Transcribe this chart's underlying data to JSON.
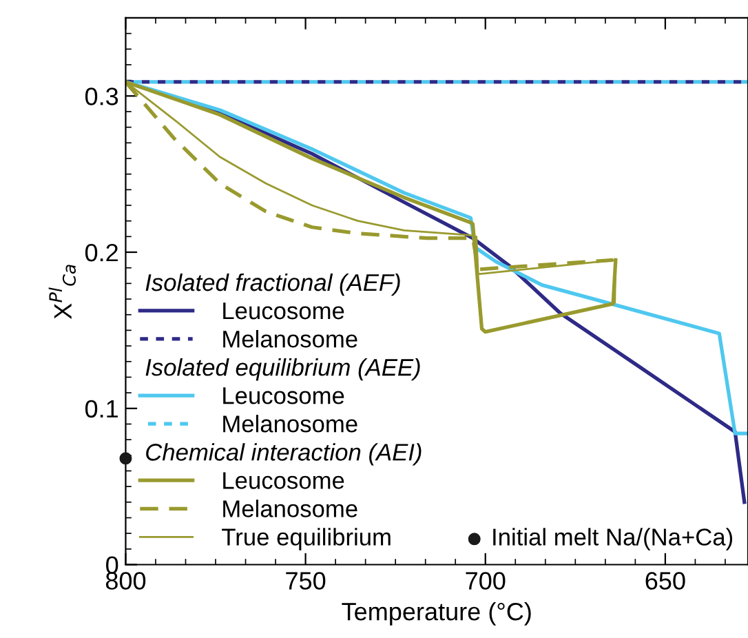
{
  "chart_data": {
    "type": "line",
    "xlabel": "Temperature (°C)",
    "ylabel": "X$^{Pl}$$_{Ca}$",
    "xlim": [
      800,
      627
    ],
    "xticks": [
      800,
      750,
      700,
      650
    ],
    "ylim": [
      0,
      0.35
    ],
    "yticks": [
      0,
      0.1,
      0.2,
      0.3
    ],
    "grid": false,
    "legend": "bottom left",
    "marker": "none",
    "annotations": [
      "Isolated fractional (AEF)",
      "Isolated equilibrium (AEE)",
      "Chemical interaction (AEI)"
    ],
    "series": [
      {
        "name": "Leucosome",
        "color": "#2e2a86",
        "line_style": "solid",
        "x": [
          800,
          773.8,
          748.2,
          722.6,
          703.5,
          693.2,
          679.2,
          658.7,
          630.6,
          628
        ],
        "values": [
          0.309,
          0.289,
          0.263,
          0.232,
          0.209,
          0.191,
          0.161,
          0.129,
          0.085,
          0.04
        ]
      },
      {
        "name": "Melanosome",
        "color": "#2e2a86",
        "line_style": "dotted",
        "x": [
          800,
          627
        ],
        "values": [
          0.309,
          0.309
        ]
      },
      {
        "name": "Leucosome",
        "color": "#4fc8ef",
        "line_style": "solid",
        "x": [
          800,
          773.8,
          748.2,
          722.6,
          704.1,
          702.8,
          697.1,
          684.3,
          665.1,
          635.0,
          630.6,
          627
        ],
        "values": [
          0.309,
          0.291,
          0.266,
          0.238,
          0.222,
          0.203,
          0.194,
          0.179,
          0.167,
          0.148,
          0.084,
          0.084
        ]
      },
      {
        "name": "Melanosome",
        "color": "#4fc8ef",
        "line_style": "dotted",
        "x": [
          800,
          627
        ],
        "values": [
          0.309,
          0.309
        ]
      },
      {
        "name": "Leucosome",
        "color": "#999a2e",
        "line_style": "solid",
        "x": [
          800,
          773.8,
          748.2,
          722.6,
          704.1,
          703.5,
          701,
          700,
          664.5,
          663.8
        ],
        "values": [
          0.309,
          0.288,
          0.26,
          0.235,
          0.219,
          0.218,
          0.151,
          0.149,
          0.167,
          0.195
        ]
      },
      {
        "name": "Melanosome",
        "color": "#999a2e",
        "line_style": "dashed",
        "x": [
          800,
          786.6,
          773.8,
          761.0,
          748.2,
          735.4,
          716.2,
          703.5,
          702,
          664.5
        ],
        "values": [
          0.309,
          0.273,
          0.244,
          0.226,
          0.216,
          0.212,
          0.209,
          0.209,
          0.189,
          0.195
        ]
      },
      {
        "name": "True equilibrium",
        "color": "#999a2e",
        "line_style": "solid",
        "x": [
          800,
          786.6,
          773.8,
          761,
          748.2,
          735.4,
          722.6,
          704.7,
          702.5,
          702,
          663.8,
          664
        ],
        "values": [
          0.309,
          0.285,
          0.261,
          0.244,
          0.23,
          0.22,
          0.214,
          0.211,
          0.21,
          0.186,
          0.195,
          0.168
        ]
      },
      {
        "name": "Initial melt Na/(Na+Ca)",
        "type": "scatter",
        "marker": "circle",
        "color": "#1a1a1a",
        "x": [
          800
        ],
        "values": [
          0.068
        ]
      }
    ]
  }
}
